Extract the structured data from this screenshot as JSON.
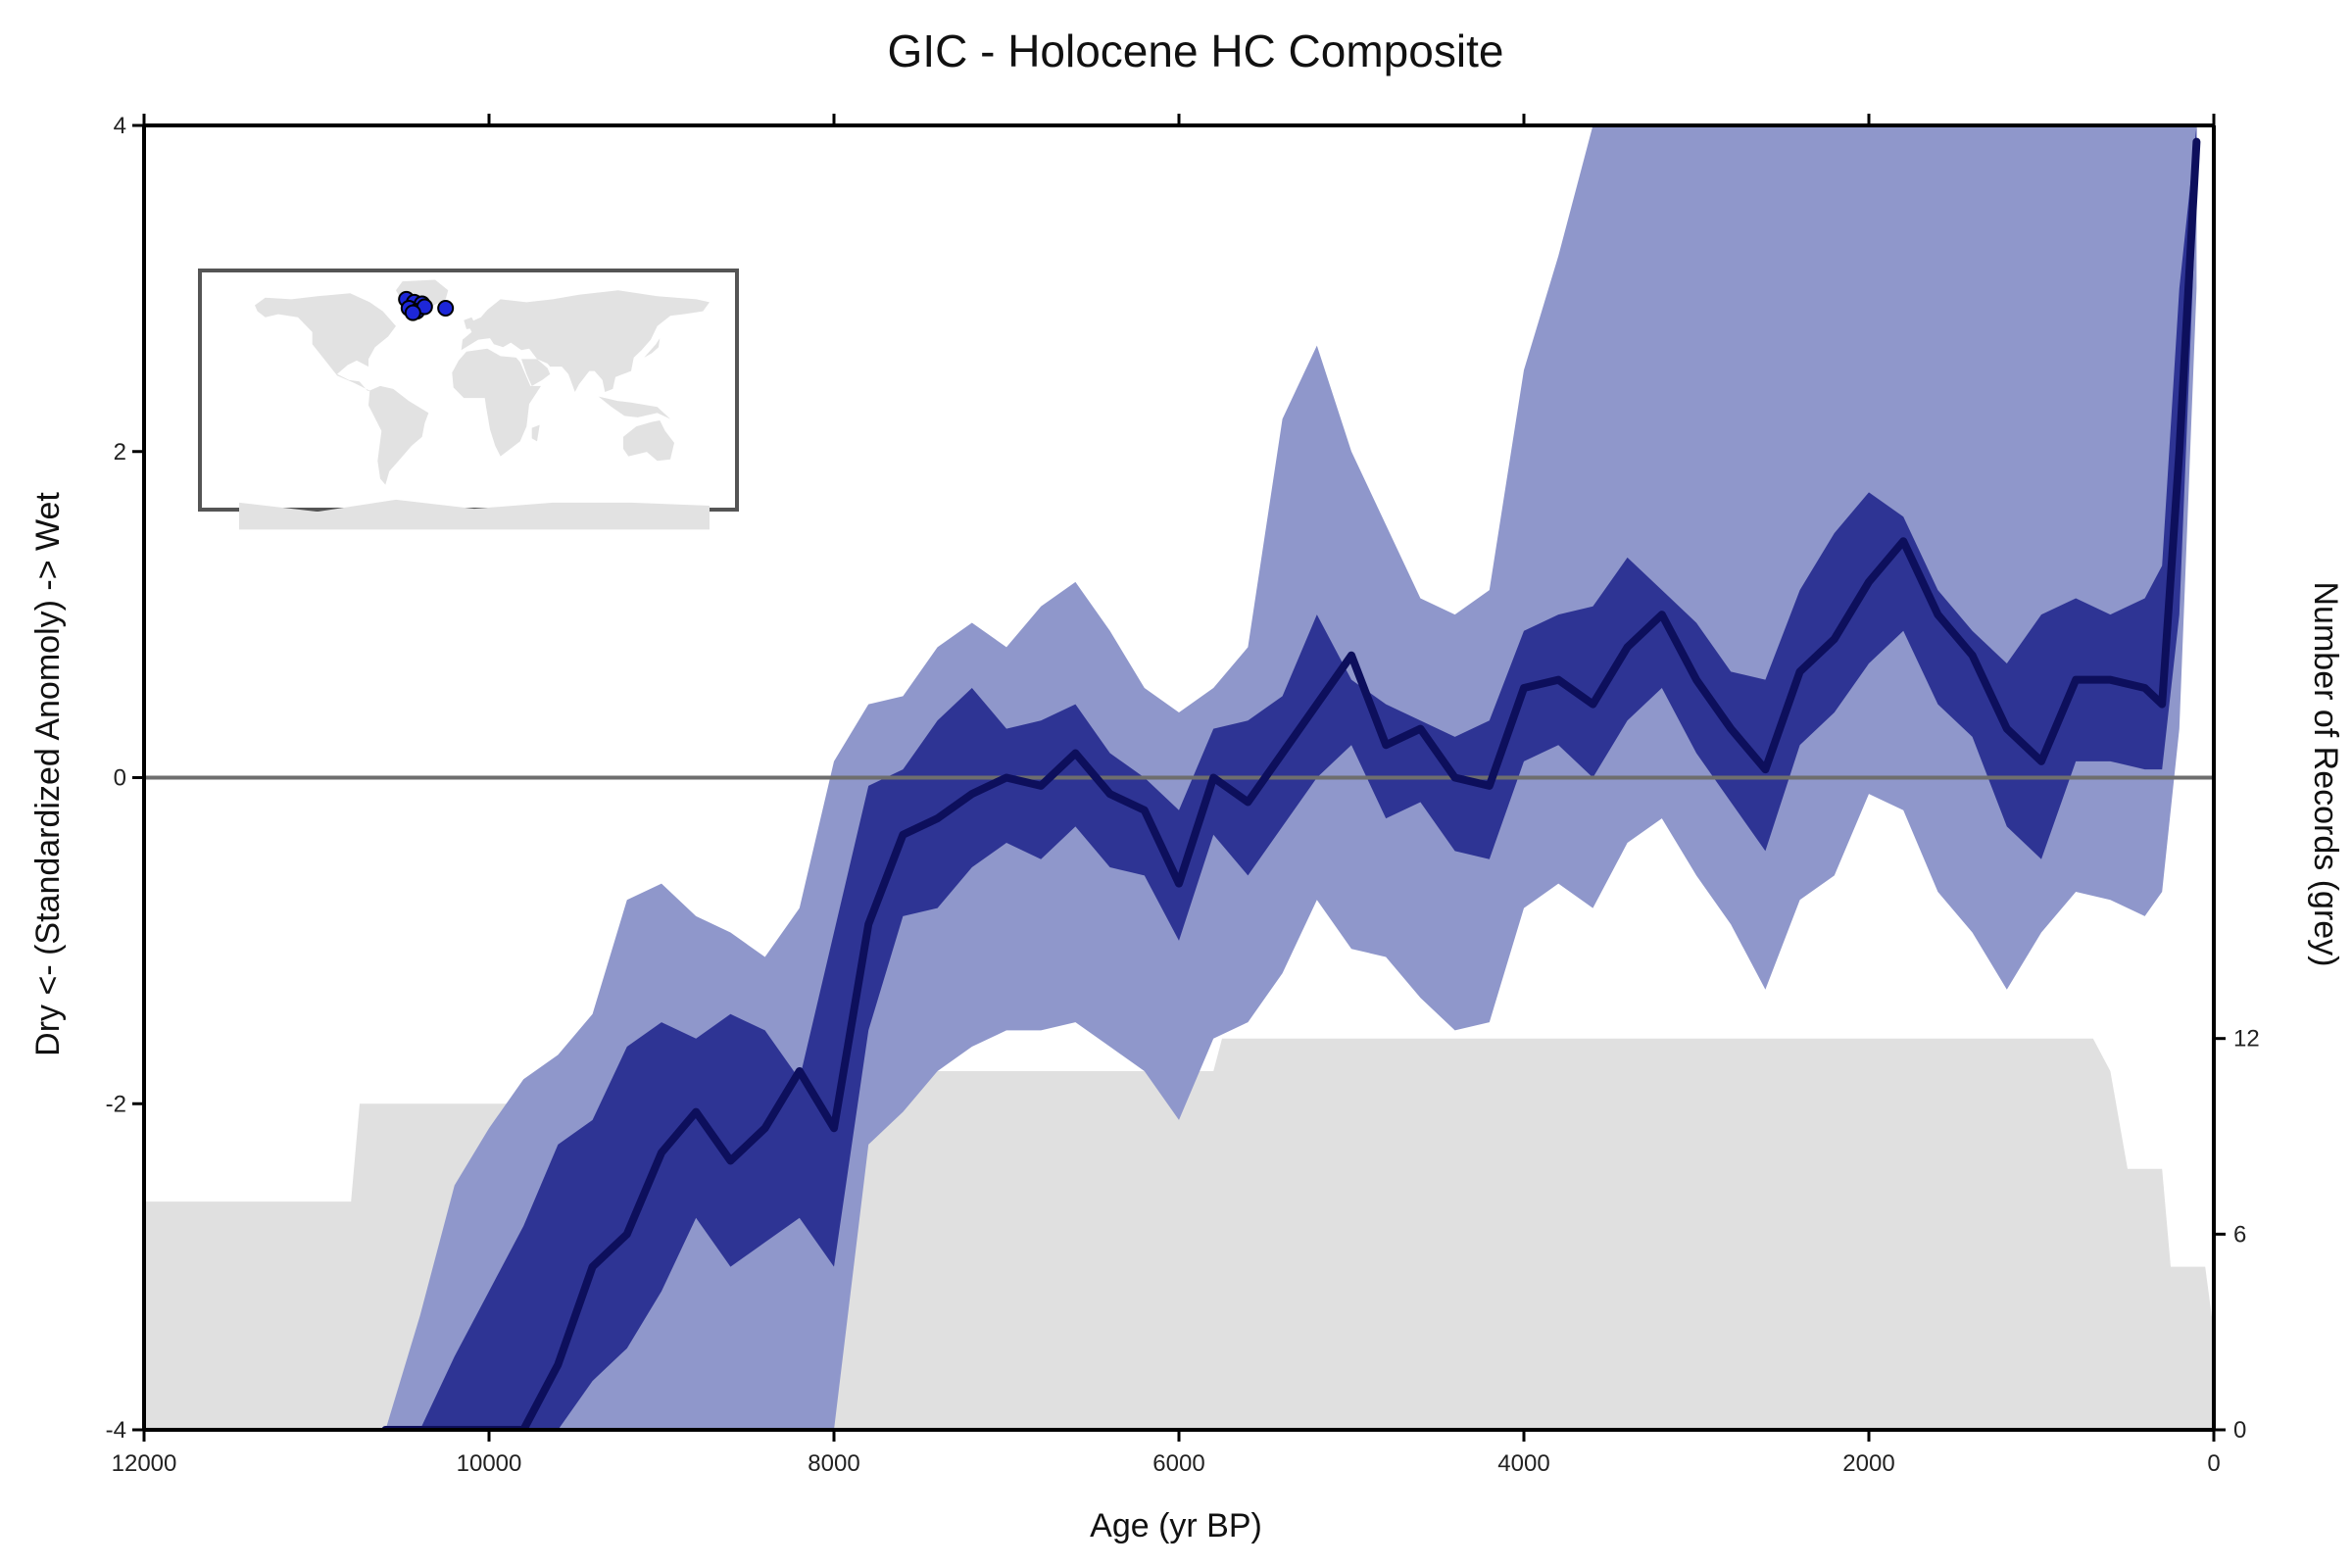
{
  "chart_data": {
    "type": "area",
    "title": "GIC - Holocene HC Composite",
    "xlabel": "Age (yr BP)",
    "ylabel": "Dry <- (Standardized Anomoly) -> Wet",
    "y2label": "Number of Records (grey)",
    "xlim": [
      12000,
      0
    ],
    "ylim": [
      -4,
      4
    ],
    "y2lim": [
      0,
      40
    ],
    "x_ticks": [
      12000,
      10000,
      8000,
      6000,
      4000,
      2000,
      0
    ],
    "x_tick_labels": [
      "12000",
      "10000",
      "8000",
      "6000",
      "4000",
      "2000",
      "0"
    ],
    "y_ticks": [
      -4,
      -2,
      0,
      2,
      4
    ],
    "y_tick_labels": [
      "-4",
      "-2",
      "0",
      "2",
      "4"
    ],
    "y2_ticks": [
      0,
      6,
      12
    ],
    "y2_tick_labels": [
      "0",
      "6",
      "12"
    ],
    "zero_line": 0,
    "grid": false,
    "legend": "none",
    "colors": {
      "median": "#0d0f5c",
      "inner_band": "#2e3494",
      "outer_band": "#8f97cb",
      "record_count": "#e0e0e0",
      "zero_line": "#6e6e6e",
      "inset_land": "#e2e2e2",
      "inset_site": "#1d27d8"
    },
    "x": [
      10600,
      10400,
      10200,
      10000,
      9800,
      9600,
      9400,
      9200,
      9000,
      8800,
      8600,
      8400,
      8200,
      8000,
      7800,
      7600,
      7400,
      7200,
      7000,
      6800,
      6600,
      6400,
      6200,
      6000,
      5800,
      5600,
      5400,
      5200,
      5000,
      4800,
      4600,
      4400,
      4200,
      4000,
      3800,
      3600,
      3400,
      3200,
      3000,
      2800,
      2600,
      2400,
      2200,
      2000,
      1800,
      1600,
      1400,
      1200,
      1000,
      800,
      600,
      400,
      300,
      200,
      100
    ],
    "series": [
      {
        "role": "outer_band_upper",
        "values": [
          -4,
          -3.3,
          -2.5,
          -2.15,
          -1.85,
          -1.7,
          -1.45,
          -0.75,
          -0.65,
          -0.85,
          -0.95,
          -1.1,
          -0.8,
          0.1,
          0.45,
          0.5,
          0.8,
          0.95,
          0.8,
          1.05,
          1.2,
          0.9,
          0.55,
          0.4,
          0.55,
          0.8,
          2.2,
          2.65,
          2.0,
          1.55,
          1.1,
          1.0,
          1.15,
          2.5,
          3.2,
          4.0,
          4.0,
          4.0,
          4.0,
          4.0,
          4.0,
          4.0,
          4.0,
          4.0,
          4.0,
          4.0,
          4.0,
          4.0,
          4.0,
          4.0,
          4.0,
          4.0,
          4.0,
          4.0,
          4.0
        ]
      },
      {
        "role": "inner_band_upper",
        "values": [
          -4,
          -4,
          -3.55,
          -3.15,
          -2.75,
          -2.25,
          -2.1,
          -1.65,
          -1.5,
          -1.6,
          -1.45,
          -1.55,
          -1.85,
          -0.95,
          -0.05,
          0.05,
          0.35,
          0.55,
          0.3,
          0.35,
          0.45,
          0.15,
          0.0,
          -0.2,
          0.3,
          0.35,
          0.5,
          1.0,
          0.6,
          0.45,
          0.35,
          0.25,
          0.35,
          0.9,
          1.0,
          1.05,
          1.35,
          1.15,
          0.95,
          0.65,
          0.6,
          1.15,
          1.5,
          1.75,
          1.6,
          1.15,
          0.9,
          0.7,
          1.0,
          1.1,
          1.0,
          1.1,
          1.3,
          3.0,
          4.0
        ]
      },
      {
        "role": "median",
        "values": [
          -4,
          -4,
          -4,
          -4,
          -4,
          -3.6,
          -3.0,
          -2.8,
          -2.3,
          -2.05,
          -2.35,
          -2.15,
          -1.8,
          -2.15,
          -0.9,
          -0.35,
          -0.25,
          -0.1,
          0.0,
          -0.05,
          0.15,
          -0.1,
          -0.2,
          -0.65,
          0.0,
          -0.15,
          0.15,
          0.45,
          0.75,
          0.2,
          0.3,
          0.0,
          -0.05,
          0.55,
          0.6,
          0.45,
          0.8,
          1.0,
          0.6,
          0.3,
          0.05,
          0.65,
          0.85,
          1.2,
          1.45,
          1.0,
          0.75,
          0.3,
          0.1,
          0.6,
          0.6,
          0.55,
          0.45,
          2.0,
          3.9
        ]
      },
      {
        "role": "inner_band_lower",
        "values": [
          -4,
          -4,
          -4,
          -4,
          -4,
          -4,
          -3.7,
          -3.5,
          -3.15,
          -2.7,
          -3.0,
          -2.85,
          -2.7,
          -3.0,
          -1.55,
          -0.85,
          -0.8,
          -0.55,
          -0.4,
          -0.5,
          -0.3,
          -0.55,
          -0.6,
          -1.0,
          -0.35,
          -0.6,
          -0.3,
          0.0,
          0.2,
          -0.25,
          -0.15,
          -0.45,
          -0.5,
          0.1,
          0.2,
          0.0,
          0.35,
          0.55,
          0.15,
          -0.15,
          -0.45,
          0.2,
          0.4,
          0.7,
          0.9,
          0.45,
          0.25,
          -0.3,
          -0.5,
          0.1,
          0.1,
          0.05,
          0.05,
          1.0,
          3.6
        ]
      },
      {
        "role": "outer_band_lower",
        "values": [
          -4,
          -4,
          -4,
          -4,
          -4,
          -4,
          -4,
          -4,
          -4,
          -4,
          -4,
          -4,
          -4,
          -4,
          -2.25,
          -2.05,
          -1.8,
          -1.65,
          -1.55,
          -1.55,
          -1.5,
          -1.65,
          -1.8,
          -2.1,
          -1.6,
          -1.5,
          -1.2,
          -0.75,
          -1.05,
          -1.1,
          -1.35,
          -1.55,
          -1.5,
          -0.8,
          -0.65,
          -0.8,
          -0.4,
          -0.25,
          -0.6,
          -0.9,
          -1.3,
          -0.75,
          -0.6,
          -0.1,
          -0.2,
          -0.7,
          -0.95,
          -1.3,
          -0.95,
          -0.7,
          -0.75,
          -0.85,
          -0.7,
          0.3,
          3.0
        ]
      }
    ],
    "record_count": {
      "x": [
        12000,
        10800,
        10750,
        8000,
        7950,
        5800,
        5750,
        700,
        600,
        500,
        300,
        250,
        50,
        0
      ],
      "values": [
        7,
        7,
        10,
        10,
        11,
        11,
        12,
        12,
        11,
        8,
        8,
        5,
        5,
        3
      ]
    }
  },
  "inset_map": {
    "sites": [
      {
        "lon": -52,
        "lat": 70
      },
      {
        "lon": -46,
        "lat": 68
      },
      {
        "lon": -40,
        "lat": 67
      },
      {
        "lon": -50,
        "lat": 64
      },
      {
        "lon": -44,
        "lat": 62
      },
      {
        "lon": -38,
        "lat": 65
      },
      {
        "lon": -47,
        "lat": 61
      },
      {
        "lon": -22,
        "lat": 64
      }
    ]
  }
}
